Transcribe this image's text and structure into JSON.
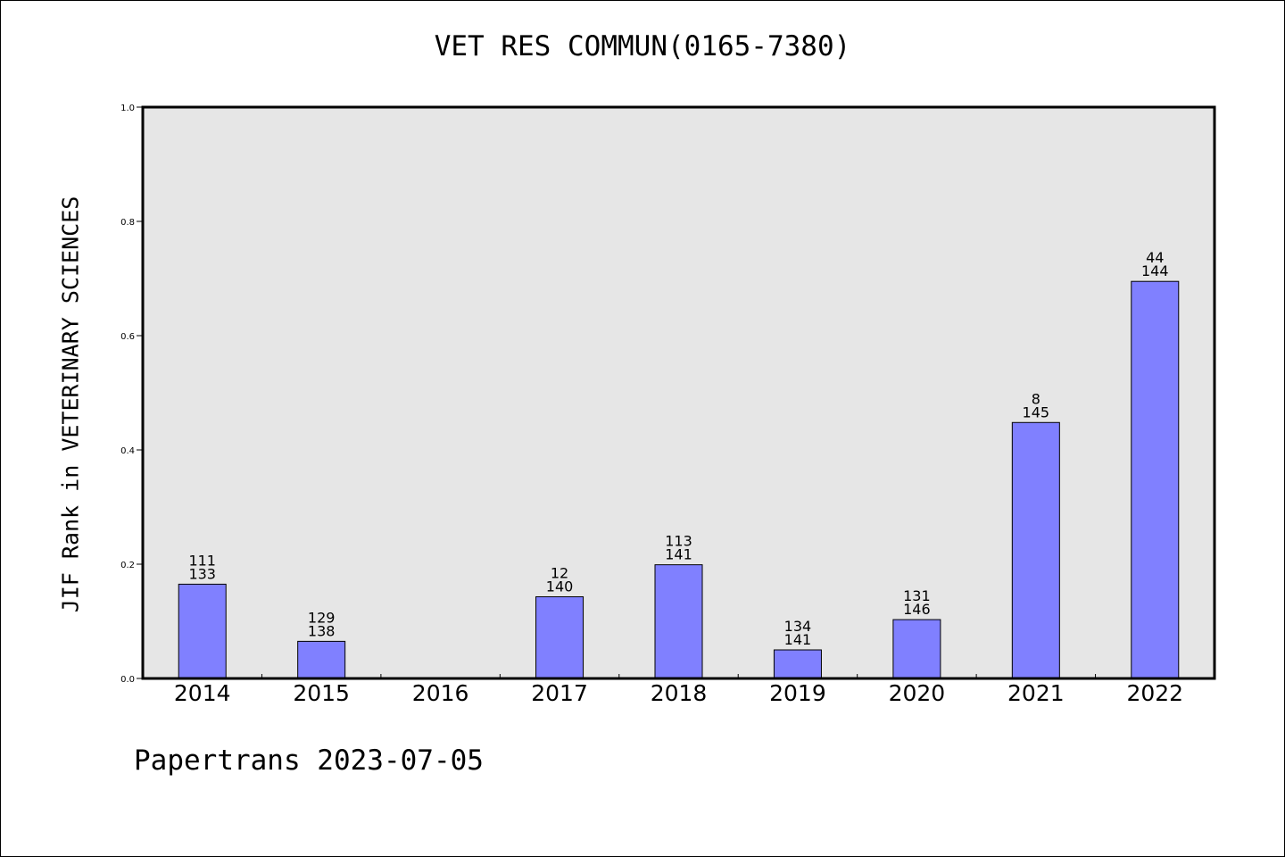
{
  "chart_data": {
    "type": "bar",
    "title": "VET RES COMMUN(0165-7380)",
    "xlabel": "",
    "ylabel": "JIF Rank in VETERINARY SCIENCES",
    "ylim": [
      0,
      1.0
    ],
    "yticks": [
      "0.0",
      "0.2",
      "0.4",
      "0.6",
      "0.8",
      "1.0"
    ],
    "categories": [
      "2014",
      "2015",
      "2016",
      "2017",
      "2018",
      "2019",
      "2020",
      "2021",
      "2022"
    ],
    "values": [
      0.165,
      0.065,
      null,
      0.143,
      0.199,
      0.05,
      0.103,
      0.448,
      0.695
    ],
    "rank": [
      "111",
      "129",
      "",
      "12",
      "113",
      "134",
      "131",
      "8",
      "44"
    ],
    "total": [
      "133",
      "138",
      "",
      "140",
      "141",
      "141",
      "146",
      "145",
      "144"
    ],
    "bar_color": "#8080ff",
    "plot_background": "#e6e6e6",
    "grid": false
  },
  "footer": "Papertrans 2023-07-05"
}
